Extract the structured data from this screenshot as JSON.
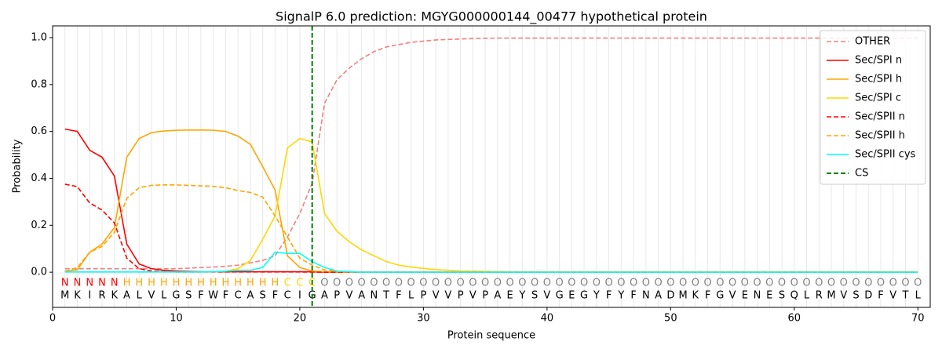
{
  "chart_data": {
    "type": "line",
    "title": "SignalP 6.0 prediction: MGYG000000144_00477 hypothetical protein",
    "xlabel": "Protein sequence",
    "ylabel": "Probability",
    "x": [
      1,
      2,
      3,
      4,
      5,
      6,
      7,
      8,
      9,
      10,
      11,
      12,
      13,
      14,
      15,
      16,
      17,
      18,
      19,
      20,
      21,
      22,
      23,
      24,
      25,
      26,
      27,
      28,
      29,
      30,
      31,
      32,
      33,
      34,
      35,
      36,
      37,
      38,
      39,
      40,
      41,
      42,
      43,
      44,
      45,
      46,
      47,
      48,
      49,
      50,
      51,
      52,
      53,
      54,
      55,
      56,
      57,
      58,
      59,
      60,
      61,
      62,
      63,
      64,
      65,
      66,
      67,
      68,
      69,
      70
    ],
    "xlim": [
      0,
      71
    ],
    "ylim": [
      -0.15,
      1.05
    ],
    "xticks": [
      0,
      10,
      20,
      30,
      40,
      50,
      60,
      70
    ],
    "yticks": [
      {
        "value": 0,
        "label": "0.0"
      },
      0.2,
      0.4,
      0.6,
      0.8,
      {
        "value": 1,
        "label": "1.0"
      }
    ],
    "sequence": [
      "M",
      "K",
      "I",
      "R",
      "K",
      "A",
      "L",
      "V",
      "L",
      "G",
      "S",
      "F",
      "W",
      "F",
      "C",
      "A",
      "S",
      "F",
      "C",
      "I",
      "G",
      "A",
      "P",
      "V",
      "A",
      "N",
      "T",
      "F",
      "L",
      "P",
      "V",
      "V",
      "P",
      "V",
      "P",
      "A",
      "E",
      "Y",
      "S",
      "V",
      "G",
      "E",
      "G",
      "Y",
      "F",
      "Y",
      "F",
      "N",
      "A",
      "D",
      "M",
      "K",
      "F",
      "G",
      "V",
      "E",
      "N",
      "E",
      "S",
      "Q",
      "L",
      "R",
      "M",
      "V",
      "S",
      "D",
      "F",
      "V",
      "T",
      "L"
    ],
    "residue_labels": [
      "N",
      "N",
      "N",
      "N",
      "N",
      "H",
      "H",
      "H",
      "H",
      "H",
      "H",
      "H",
      "H",
      "H",
      "H",
      "H",
      "H",
      "H",
      "C",
      "C",
      "C",
      "O",
      "O",
      "O",
      "O",
      "O",
      "O",
      "O",
      "O",
      "O",
      "O",
      "O",
      "O",
      "O",
      "O",
      "O",
      "O",
      "O",
      "O",
      "O",
      "O",
      "O",
      "O",
      "O",
      "O",
      "O",
      "O",
      "O",
      "O",
      "O",
      "O",
      "O",
      "O",
      "O",
      "O",
      "O",
      "O",
      "O",
      "O",
      "O",
      "O",
      "O",
      "O",
      "O",
      "O",
      "O",
      "O",
      "O",
      "O",
      "O"
    ],
    "label_colors": {
      "N": "#ff0000",
      "H": "#ffa500",
      "C": "#ffd700",
      "O": "#808080"
    },
    "series": [
      {
        "name": "OTHER",
        "color": "#f08080",
        "linestyle": "dashed",
        "values": [
          0.015,
          0.015,
          0.015,
          0.015,
          0.015,
          0.015,
          0.015,
          0.015,
          0.015,
          0.015,
          0.017,
          0.02,
          0.022,
          0.025,
          0.03,
          0.04,
          0.05,
          0.07,
          0.15,
          0.25,
          0.38,
          0.72,
          0.82,
          0.87,
          0.91,
          0.94,
          0.96,
          0.97,
          0.98,
          0.985,
          0.99,
          0.992,
          0.994,
          0.996,
          0.997,
          0.998,
          0.998,
          0.998,
          0.998,
          0.998,
          0.998,
          0.998,
          0.998,
          0.998,
          0.998,
          0.998,
          0.998,
          0.998,
          0.998,
          0.998,
          0.998,
          0.998,
          0.998,
          0.998,
          0.998,
          0.998,
          0.998,
          0.998,
          0.998,
          0.998,
          0.998,
          0.998,
          0.998,
          0.998,
          0.998,
          0.998,
          0.998,
          0.998,
          0.998,
          0.998
        ]
      },
      {
        "name": "Sec/SPI n",
        "color": "#ff0000",
        "linestyle": "solid",
        "values": [
          0.61,
          0.6,
          0.52,
          0.49,
          0.41,
          0.12,
          0.035,
          0.015,
          0.008,
          0.005,
          0.003,
          0.002,
          0.002,
          0.002,
          0.002,
          0.002,
          0.002,
          0.002,
          0.002,
          0.002,
          0.002,
          0,
          0,
          0,
          0,
          0,
          0,
          0,
          0,
          0,
          0,
          0,
          0,
          0,
          0,
          0,
          0,
          0,
          0,
          0,
          0,
          0,
          0,
          0,
          0,
          0,
          0,
          0,
          0,
          0,
          0,
          0,
          0,
          0,
          0,
          0,
          0,
          0,
          0,
          0,
          0,
          0,
          0,
          0,
          0,
          0,
          0,
          0,
          0,
          0
        ]
      },
      {
        "name": "Sec/SPI h",
        "color": "#ffa500",
        "linestyle": "solid",
        "values": [
          0.005,
          0.01,
          0.085,
          0.12,
          0.19,
          0.49,
          0.57,
          0.595,
          0.602,
          0.605,
          0.606,
          0.606,
          0.605,
          0.6,
          0.58,
          0.545,
          0.45,
          0.35,
          0.07,
          0.02,
          0.005,
          0.002,
          0,
          0,
          0,
          0,
          0,
          0,
          0,
          0,
          0,
          0,
          0,
          0,
          0,
          0,
          0,
          0,
          0,
          0,
          0,
          0,
          0,
          0,
          0,
          0,
          0,
          0,
          0,
          0,
          0,
          0,
          0,
          0,
          0,
          0,
          0,
          0,
          0,
          0,
          0,
          0,
          0,
          0,
          0,
          0,
          0,
          0,
          0,
          0
        ]
      },
      {
        "name": "Sec/SPI c",
        "color": "#ffd700",
        "linestyle": "solid",
        "values": [
          0.001,
          0.001,
          0.001,
          0.001,
          0.001,
          0.001,
          0.001,
          0.001,
          0.001,
          0.001,
          0.001,
          0.001,
          0.001,
          0.005,
          0.015,
          0.05,
          0.14,
          0.24,
          0.53,
          0.57,
          0.555,
          0.25,
          0.175,
          0.13,
          0.095,
          0.07,
          0.045,
          0.03,
          0.022,
          0.016,
          0.011,
          0.008,
          0.005,
          0.004,
          0.003,
          0.002,
          0.001,
          0.001,
          0.001,
          0.001,
          0.001,
          0.001,
          0.001,
          0.001,
          0.001,
          0.001,
          0.001,
          0.001,
          0.001,
          0.001,
          0.001,
          0.001,
          0.001,
          0.001,
          0.001,
          0.001,
          0.001,
          0.001,
          0.001,
          0.001,
          0.001,
          0.001,
          0.001,
          0.001,
          0.001,
          0.001,
          0.001,
          0.001,
          0.001,
          0.001
        ]
      },
      {
        "name": "Sec/SPII n",
        "color": "#ff0000",
        "linestyle": "dashed",
        "values": [
          0.375,
          0.365,
          0.295,
          0.265,
          0.21,
          0.06,
          0.015,
          0.005,
          0.002,
          0.001,
          0.001,
          0.001,
          0.001,
          0.001,
          0.001,
          0.001,
          0.001,
          0.001,
          0.001,
          0.001,
          0,
          0,
          0,
          0,
          0,
          0,
          0,
          0,
          0,
          0,
          0,
          0,
          0,
          0,
          0,
          0,
          0,
          0,
          0,
          0,
          0,
          0,
          0,
          0,
          0,
          0,
          0,
          0,
          0,
          0,
          0,
          0,
          0,
          0,
          0,
          0,
          0,
          0,
          0,
          0,
          0,
          0,
          0,
          0,
          0,
          0,
          0,
          0,
          0,
          0
        ]
      },
      {
        "name": "Sec/SPII h",
        "color": "#ffa500",
        "linestyle": "dashed",
        "values": [
          0.003,
          0.02,
          0.085,
          0.11,
          0.17,
          0.315,
          0.36,
          0.37,
          0.372,
          0.372,
          0.37,
          0.368,
          0.366,
          0.36,
          0.348,
          0.34,
          0.32,
          0.24,
          0.15,
          0.06,
          0.03,
          0.01,
          0.003,
          0,
          0,
          0,
          0,
          0,
          0,
          0,
          0,
          0,
          0,
          0,
          0,
          0,
          0,
          0,
          0,
          0,
          0,
          0,
          0,
          0,
          0,
          0,
          0,
          0,
          0,
          0,
          0,
          0,
          0,
          0,
          0,
          0,
          0,
          0,
          0,
          0,
          0,
          0,
          0,
          0,
          0,
          0,
          0,
          0,
          0,
          0
        ]
      },
      {
        "name": "Sec/SPII cys",
        "color": "#00ffff",
        "linestyle": "solid",
        "values": [
          0.001,
          0.001,
          0.001,
          0.001,
          0.001,
          0.001,
          0.001,
          0.001,
          0.001,
          0.001,
          0.001,
          0.001,
          0.002,
          0.004,
          0.008,
          0.008,
          0.02,
          0.085,
          0.08,
          0.08,
          0.045,
          0.02,
          0.005,
          0.002,
          0,
          0,
          0,
          0,
          0,
          0,
          0,
          0,
          0,
          0,
          0,
          0,
          0,
          0,
          0,
          0,
          0,
          0,
          0,
          0,
          0,
          0,
          0,
          0,
          0,
          0,
          0,
          0,
          0,
          0,
          0,
          0,
          0,
          0,
          0,
          0,
          0,
          0,
          0,
          0,
          0,
          0,
          0,
          0,
          0,
          0
        ]
      }
    ],
    "cleavage_site": {
      "name": "CS",
      "x": 21,
      "color": "#008000"
    },
    "legend": "upper right"
  }
}
